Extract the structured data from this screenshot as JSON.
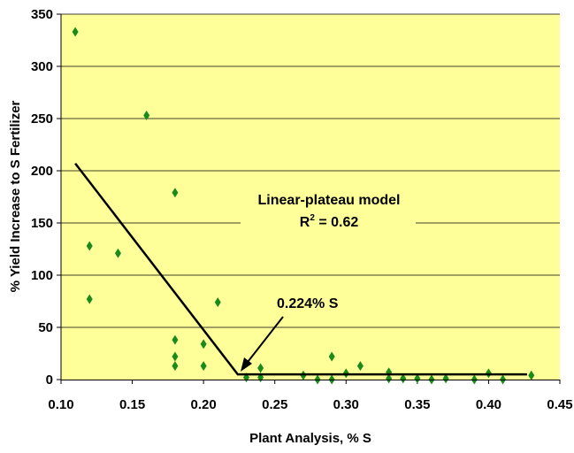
{
  "chart_data": {
    "type": "scatter",
    "xlabel": "Plant Analysis, % S",
    "ylabel": "% Yield Increase to S Fertilizer",
    "xlim": [
      0.1,
      0.45
    ],
    "ylim": [
      0,
      350
    ],
    "x_ticks": [
      "0.10",
      "0.15",
      "0.20",
      "0.25",
      "0.30",
      "0.35",
      "0.40",
      "0.45"
    ],
    "y_ticks": [
      "0",
      "50",
      "100",
      "150",
      "200",
      "250",
      "300",
      "350"
    ],
    "grid": "horizontal",
    "plot_background": "#ffff99",
    "marker_color": "#1a8a1a",
    "line_color": "#000000",
    "points": [
      {
        "x": 0.11,
        "y": 333
      },
      {
        "x": 0.12,
        "y": 128
      },
      {
        "x": 0.12,
        "y": 77
      },
      {
        "x": 0.14,
        "y": 121
      },
      {
        "x": 0.16,
        "y": 253
      },
      {
        "x": 0.18,
        "y": 179
      },
      {
        "x": 0.18,
        "y": 38
      },
      {
        "x": 0.18,
        "y": 22
      },
      {
        "x": 0.18,
        "y": 13
      },
      {
        "x": 0.2,
        "y": 34
      },
      {
        "x": 0.2,
        "y": 13
      },
      {
        "x": 0.21,
        "y": 74
      },
      {
        "x": 0.23,
        "y": 2
      },
      {
        "x": 0.24,
        "y": 11
      },
      {
        "x": 0.24,
        "y": 2
      },
      {
        "x": 0.27,
        "y": 4
      },
      {
        "x": 0.28,
        "y": 0
      },
      {
        "x": 0.29,
        "y": 22
      },
      {
        "x": 0.29,
        "y": 0
      },
      {
        "x": 0.3,
        "y": 6
      },
      {
        "x": 0.31,
        "y": 13
      },
      {
        "x": 0.33,
        "y": 7
      },
      {
        "x": 0.33,
        "y": 1
      },
      {
        "x": 0.34,
        "y": 1
      },
      {
        "x": 0.35,
        "y": 1
      },
      {
        "x": 0.36,
        "y": 0
      },
      {
        "x": 0.37,
        "y": 1
      },
      {
        "x": 0.39,
        "y": 0
      },
      {
        "x": 0.4,
        "y": 6
      },
      {
        "x": 0.41,
        "y": 0
      },
      {
        "x": 0.43,
        "y": 4
      }
    ],
    "model_line": [
      {
        "x": 0.11,
        "y": 207
      },
      {
        "x": 0.224,
        "y": 5
      },
      {
        "x": 0.427,
        "y": 5
      }
    ],
    "annotations": {
      "model_name": "Linear-plateau model",
      "r2_prefix": "R",
      "r2_sup": "2",
      "r2_suffix": " = 0.62",
      "breakpoint_label": "0.224% S"
    }
  }
}
